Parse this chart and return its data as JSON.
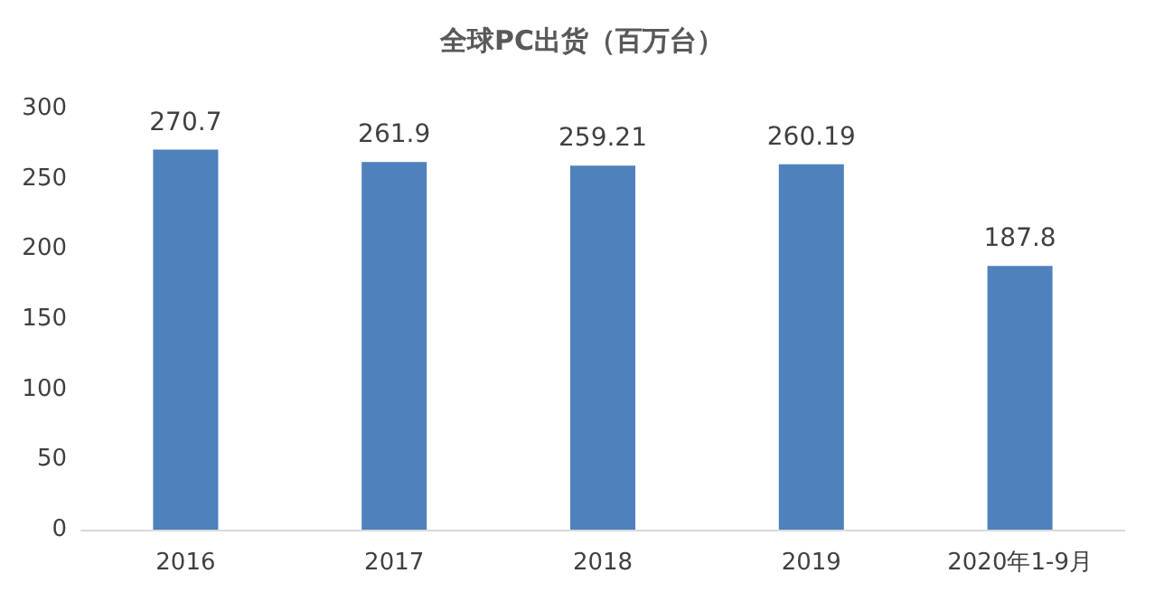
{
  "chart_data": {
    "type": "bar",
    "title": "全球PC出货（百万台）",
    "categories": [
      "2016",
      "2017",
      "2018",
      "2019",
      "2020年1-9月"
    ],
    "values": [
      270.7,
      261.9,
      259.21,
      260.19,
      187.8
    ],
    "color": "#4f81bd",
    "ylim": [
      0,
      300
    ],
    "yticks": [
      0,
      50,
      100,
      150,
      200,
      250,
      300
    ],
    "grid": false,
    "data_labels": true
  }
}
